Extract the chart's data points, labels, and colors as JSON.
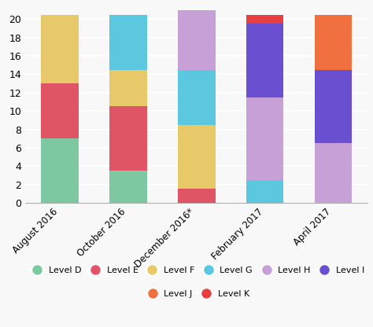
{
  "categories": [
    "August 2016",
    "October 2016",
    "December 2016*",
    "February 2017",
    "April 2017"
  ],
  "levels": [
    "Level D",
    "Level E",
    "Level F",
    "Level G",
    "Level H",
    "Level I",
    "Level J",
    "Level K"
  ],
  "colors": {
    "Level D": "#7dc8a0",
    "Level E": "#e05565",
    "Level F": "#e8c96a",
    "Level G": "#5bc8e0",
    "Level H": "#c8a0d8",
    "Level I": "#6a50d0",
    "Level J": "#f07040",
    "Level K": "#e84040"
  },
  "data": {
    "Level D": [
      7.0,
      3.5,
      0,
      0,
      0
    ],
    "Level E": [
      6.0,
      7.0,
      1.5,
      0,
      0
    ],
    "Level F": [
      7.5,
      4.0,
      7.0,
      0,
      0
    ],
    "Level G": [
      0,
      6.0,
      6.0,
      2.5,
      0
    ],
    "Level H": [
      0,
      0,
      6.5,
      9.0,
      6.5
    ],
    "Level I": [
      0,
      0,
      0,
      8.0,
      8.0
    ],
    "Level J": [
      0,
      0,
      0,
      0,
      6.0
    ],
    "Level K": [
      0,
      0,
      0,
      1.0,
      0
    ]
  },
  "ylim": [
    0,
    21.5
  ],
  "yticks": [
    0,
    2,
    4,
    6,
    8,
    10,
    12,
    14,
    16,
    18,
    20
  ],
  "background_color": "#f8f8f8",
  "bar_width": 0.55,
  "legend_marker_size": 10
}
